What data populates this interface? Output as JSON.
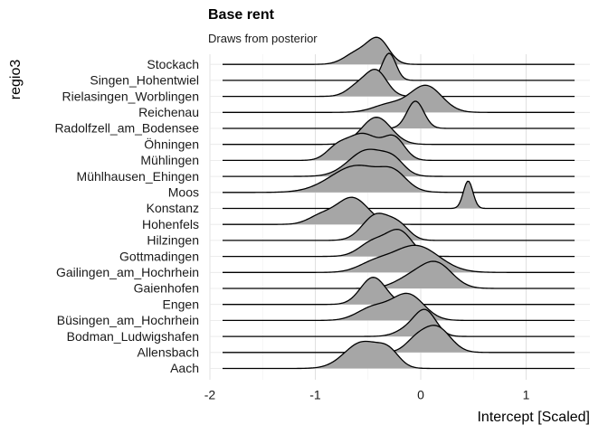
{
  "chart_data": {
    "type": "ridgeline",
    "title": "Base rent",
    "subtitle": "Draws from posterior",
    "xlabel": "Intercept [Scaled]",
    "ylabel": "regio3",
    "xlim": [
      -2,
      1.5
    ],
    "xticks": [
      -2,
      -1,
      0,
      1
    ],
    "xtick_labels": [
      "-2",
      "-1",
      "0",
      "1"
    ],
    "grid": true,
    "fill_color": "#a6a6a6",
    "categories": [
      "Aach",
      "Allensbach",
      "Bodman_Ludwigshafen",
      "Büsingen_am_Hochrhein",
      "Engen",
      "Gaienhofen",
      "Gailingen_am_Hochrhein",
      "Gottmadingen",
      "Hilzingen",
      "Hohenfels",
      "Konstanz",
      "Moos",
      "Mühlhausen_Ehingen",
      "Mühlingen",
      "Öhningen",
      "Radolfzell_am_Bodensee",
      "Reichenau",
      "Rielasingen_Worblingen",
      "Singen_Hohentwiel",
      "Stockach"
    ],
    "series": [
      {
        "label": "Aach",
        "components": [
          {
            "mean": -0.55,
            "sd": 0.17,
            "weight": 1.0
          },
          {
            "mean": -0.3,
            "sd": 0.1,
            "weight": 0.5
          }
        ]
      },
      {
        "label": "Allensbach",
        "components": [
          {
            "mean": 0.15,
            "sd": 0.13,
            "weight": 1.0
          },
          {
            "mean": -0.05,
            "sd": 0.1,
            "weight": 0.4
          }
        ]
      },
      {
        "label": "Bodman_Ludwigshafen",
        "components": [
          {
            "mean": 0.05,
            "sd": 0.1,
            "weight": 1.0
          },
          {
            "mean": -0.1,
            "sd": 0.12,
            "weight": 0.35
          }
        ]
      },
      {
        "label": "Büsingen_am_Hochrhein",
        "components": [
          {
            "mean": -0.12,
            "sd": 0.15,
            "weight": 1.0
          },
          {
            "mean": -0.45,
            "sd": 0.15,
            "weight": 0.5
          }
        ]
      },
      {
        "label": "Engen",
        "components": [
          {
            "mean": -0.45,
            "sd": 0.12,
            "weight": 1.0
          }
        ]
      },
      {
        "label": "Gaienhofen",
        "components": [
          {
            "mean": 0.15,
            "sd": 0.15,
            "weight": 1.0
          },
          {
            "mean": -0.1,
            "sd": 0.15,
            "weight": 0.4
          }
        ]
      },
      {
        "label": "Gailingen_am_Hochrhein",
        "components": [
          {
            "mean": -0.05,
            "sd": 0.22,
            "weight": 1.0
          },
          {
            "mean": -0.45,
            "sd": 0.15,
            "weight": 0.3
          }
        ]
      },
      {
        "label": "Gottmadingen",
        "components": [
          {
            "mean": -0.2,
            "sd": 0.12,
            "weight": 1.0
          },
          {
            "mean": -0.45,
            "sd": 0.13,
            "weight": 0.6
          }
        ]
      },
      {
        "label": "Hilzingen",
        "components": [
          {
            "mean": -0.42,
            "sd": 0.13,
            "weight": 1.0
          },
          {
            "mean": -0.2,
            "sd": 0.1,
            "weight": 0.5
          }
        ]
      },
      {
        "label": "Hohenfels",
        "components": [
          {
            "mean": -0.65,
            "sd": 0.15,
            "weight": 1.0
          },
          {
            "mean": -0.95,
            "sd": 0.12,
            "weight": 0.3
          }
        ]
      },
      {
        "label": "Konstanz",
        "components": [
          {
            "mean": 0.45,
            "sd": 0.045,
            "weight": 1.0
          }
        ]
      },
      {
        "label": "Moos",
        "components": [
          {
            "mean": -0.6,
            "sd": 0.25,
            "weight": 1.0
          },
          {
            "mean": -0.25,
            "sd": 0.12,
            "weight": 0.5
          }
        ]
      },
      {
        "label": "Mühlhausen_Ehingen",
        "components": [
          {
            "mean": -0.5,
            "sd": 0.18,
            "weight": 1.0
          },
          {
            "mean": -0.25,
            "sd": 0.1,
            "weight": 0.4
          }
        ]
      },
      {
        "label": "Mühlingen",
        "components": [
          {
            "mean": -0.55,
            "sd": 0.15,
            "weight": 1.0
          },
          {
            "mean": -0.25,
            "sd": 0.1,
            "weight": 0.8
          },
          {
            "mean": -0.8,
            "sd": 0.1,
            "weight": 0.4
          }
        ]
      },
      {
        "label": "Öhningen",
        "components": [
          {
            "mean": -0.42,
            "sd": 0.14,
            "weight": 1.0
          }
        ]
      },
      {
        "label": "Radolfzell_am_Bodensee",
        "components": [
          {
            "mean": -0.05,
            "sd": 0.08,
            "weight": 1.0
          }
        ]
      },
      {
        "label": "Reichenau",
        "components": [
          {
            "mean": 0.05,
            "sd": 0.15,
            "weight": 1.0
          },
          {
            "mean": -0.3,
            "sd": 0.15,
            "weight": 0.3
          }
        ]
      },
      {
        "label": "Rielasingen_Worblingen",
        "components": [
          {
            "mean": -0.42,
            "sd": 0.1,
            "weight": 1.0
          },
          {
            "mean": -0.6,
            "sd": 0.1,
            "weight": 0.4
          }
        ]
      },
      {
        "label": "Singen_Hohentwiel",
        "components": [
          {
            "mean": -0.3,
            "sd": 0.065,
            "weight": 1.0
          }
        ]
      },
      {
        "label": "Stockach",
        "components": [
          {
            "mean": -0.4,
            "sd": 0.1,
            "weight": 1.0
          },
          {
            "mean": -0.6,
            "sd": 0.12,
            "weight": 0.5
          }
        ]
      }
    ]
  }
}
